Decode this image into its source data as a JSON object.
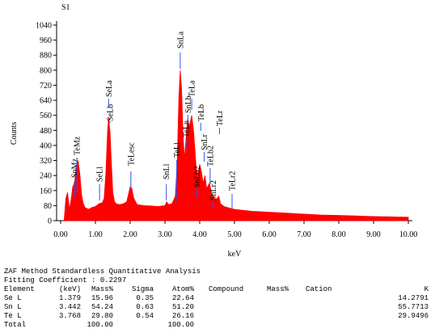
{
  "chart_data": {
    "type": "area",
    "title": "S1",
    "xlabel": "keV",
    "ylabel": "Counts",
    "color": "#ff0000",
    "marker_color": "#3050ff",
    "x": [
      0.1,
      0.15,
      0.2,
      0.25,
      0.3,
      0.35,
      0.4,
      0.45,
      0.5,
      0.55,
      0.6,
      0.65,
      0.7,
      0.8,
      0.9,
      1.0,
      1.1,
      1.2,
      1.25,
      1.3,
      1.35,
      1.38,
      1.42,
      1.46,
      1.5,
      1.55,
      1.6,
      1.7,
      1.8,
      1.9,
      1.95,
      2.0,
      2.05,
      2.1,
      2.2,
      2.4,
      2.6,
      2.8,
      3.0,
      3.05,
      3.1,
      3.2,
      3.3,
      3.35,
      3.4,
      3.44,
      3.48,
      3.52,
      3.56,
      3.6,
      3.65,
      3.7,
      3.77,
      3.82,
      3.86,
      3.9,
      3.95,
      4.0,
      4.05,
      4.1,
      4.15,
      4.2,
      4.28,
      4.35,
      4.45,
      4.55,
      4.6,
      4.7,
      4.8,
      5.0,
      5.5,
      6.0,
      6.5,
      7.0,
      7.5,
      8.0,
      8.5,
      9.0,
      9.5,
      10.0
    ],
    "values": [
      0,
      120,
      150,
      60,
      110,
      180,
      200,
      290,
      320,
      250,
      140,
      90,
      70,
      60,
      70,
      75,
      90,
      95,
      120,
      250,
      480,
      550,
      470,
      300,
      150,
      100,
      90,
      85,
      90,
      100,
      140,
      180,
      170,
      120,
      85,
      80,
      78,
      75,
      80,
      100,
      85,
      90,
      130,
      300,
      650,
      800,
      700,
      450,
      330,
      420,
      540,
      500,
      560,
      480,
      380,
      280,
      240,
      300,
      260,
      200,
      240,
      170,
      200,
      140,
      110,
      130,
      90,
      75,
      70,
      60,
      50,
      45,
      40,
      35,
      30,
      28,
      25,
      22,
      20,
      18
    ],
    "xlim": [
      0,
      10
    ],
    "ylim": [
      0,
      1040
    ],
    "xticks": [
      {
        "value": 0,
        "label": "0.00"
      },
      {
        "value": 1,
        "label": "1.00"
      },
      {
        "value": 2,
        "label": "2.00"
      },
      {
        "value": 3,
        "label": "3.00"
      },
      {
        "value": 4,
        "label": "4.00"
      },
      {
        "value": 5,
        "label": "5.00"
      },
      {
        "value": 6,
        "label": "6.00"
      },
      {
        "value": 7,
        "label": "7.00"
      },
      {
        "value": 8,
        "label": "8.00"
      },
      {
        "value": 9,
        "label": "9.00"
      },
      {
        "value": 10,
        "label": "10.00"
      }
    ],
    "yticks": [
      0,
      80,
      160,
      240,
      320,
      400,
      480,
      560,
      640,
      720,
      800,
      880,
      960,
      1040
    ],
    "annotations": [
      {
        "label": "SnMz",
        "x": 0.39
      },
      {
        "label": "TeMz",
        "x": 0.47
      },
      {
        "label": "SeLl",
        "x": 1.12
      },
      {
        "label": "SeLa",
        "x": 1.38
      },
      {
        "label": "SeLb",
        "x": 1.42
      },
      {
        "label": "TeLesc",
        "x": 2.02
      },
      {
        "label": "SnLl",
        "x": 3.04
      },
      {
        "label": "TeLl",
        "x": 3.34
      },
      {
        "label": "SnLa",
        "x": 3.44
      },
      {
        "label": "TeLn",
        "x": 3.61
      },
      {
        "label": "SnLb",
        "x": 3.66
      },
      {
        "label": "TeLa",
        "x": 3.77
      },
      {
        "label": "SnLb2",
        "x": 3.92
      },
      {
        "label": "TeLb",
        "x": 4.03
      },
      {
        "label": "SnLr",
        "x": 4.13
      },
      {
        "label": "TeLb2",
        "x": 4.3
      },
      {
        "label": "SnLr2",
        "x": 4.38
      },
      {
        "label": "TeLr",
        "x": 4.57
      },
      {
        "label": "TeLr2",
        "x": 4.93
      }
    ]
  },
  "report": {
    "title": "ZAF Method Standardless Quantitative Analysis",
    "fitting": "Fitting Coefficient : 0.2297",
    "header": [
      "Element",
      "(keV)",
      "Mass%",
      "Sigma",
      "Atom%",
      "Compound",
      "Mass%",
      "Cation",
      "K"
    ],
    "rows": [
      [
        "Se L",
        "1.379",
        "15.96",
        "0.35",
        "22.64",
        null,
        null,
        null,
        "14.2791"
      ],
      [
        "Sn L",
        "3.442",
        "54.24",
        "0.63",
        "51.20",
        null,
        null,
        null,
        "55.7713"
      ],
      [
        "Te L",
        "3.768",
        "29.80",
        "0.54",
        "26.16",
        null,
        null,
        null,
        "29.9496"
      ],
      [
        "Total",
        null,
        "100.00",
        null,
        "100.00",
        null,
        null,
        null,
        null
      ]
    ]
  }
}
